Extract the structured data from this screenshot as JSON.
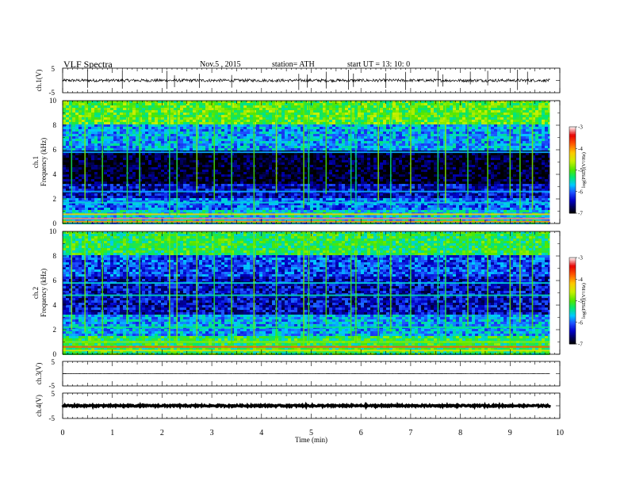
{
  "header": {
    "title": "VLF  Spectra",
    "date": "Nov.5  , 2015",
    "station": "station= ATH",
    "start": "start  UT  =   13: 10: 0"
  },
  "chart_data": [
    {
      "type": "line",
      "panel": "ch1-waveform",
      "ylabel": "ch.1(V)",
      "ylim": [
        -5,
        5
      ],
      "ytick_labels": [
        "5",
        "-5"
      ],
      "xlim": [
        0,
        10
      ],
      "x_data_extent": [
        0,
        9.8
      ],
      "baseline": 0,
      "noise_amplitude": 0.6,
      "spikes_x": [
        0.5,
        1.2,
        2.1,
        2.25,
        2.75,
        3.4,
        4.75,
        4.92,
        5.3,
        5.75,
        5.85,
        6.5,
        6.9,
        7.55,
        7.65,
        8.2,
        8.55,
        9.15,
        9.35
      ],
      "color": "#000000"
    },
    {
      "type": "heatmap",
      "panel": "ch1-spectrogram",
      "ylabel": "ch.1\nFrequency  (kHz)",
      "xlim": [
        0,
        10
      ],
      "x_data_extent": [
        0,
        9.8
      ],
      "ylim": [
        0,
        10
      ],
      "yticks": [
        0,
        2,
        4,
        6,
        8,
        10
      ],
      "colorbar": {
        "label": "log(PSD)(V²/Hz)",
        "ticks": [
          -3,
          -4,
          -5,
          -6,
          -7
        ],
        "range": [
          -7,
          -3
        ]
      },
      "bands": [
        {
          "f_range": [
            10,
            8
          ],
          "log_psd": -5.0
        },
        {
          "f_range": [
            8,
            6
          ],
          "log_psd": -5.8
        },
        {
          "f_range": [
            6,
            3.2
          ],
          "log_psd": -6.9
        },
        {
          "f_range": [
            3.2,
            2
          ],
          "log_psd": -6.4
        },
        {
          "f_range": [
            2,
            1
          ],
          "log_psd": -6.0
        },
        {
          "f_range": [
            1,
            0
          ],
          "log_psd": -5.6
        }
      ],
      "lines": [
        {
          "f": 5.8,
          "log_psd": -5.8
        },
        {
          "f": 2.6,
          "log_psd": -5.8
        },
        {
          "f": 1.7,
          "log_psd": -5.6
        },
        {
          "f": 0.75,
          "log_psd": -4.3
        },
        {
          "f": 0.4,
          "log_psd": -3.2
        },
        {
          "f": 0.15,
          "log_psd": -4.0
        }
      ],
      "sferics_x": [
        0.18,
        0.45,
        0.8,
        1.3,
        1.55,
        2.15,
        2.3,
        2.7,
        3.05,
        3.4,
        3.85,
        4.3,
        4.85,
        4.95,
        5.3,
        5.8,
        5.9,
        6.35,
        6.6,
        7.0,
        7.55,
        7.7,
        8.15,
        8.55,
        9.0,
        9.2,
        9.45
      ]
    },
    {
      "type": "heatmap",
      "panel": "ch2-spectrogram",
      "ylabel": "ch.2\nFrequency  (kHz)",
      "xlim": [
        0,
        10
      ],
      "x_data_extent": [
        0,
        9.8
      ],
      "ylim": [
        0,
        10
      ],
      "yticks": [
        0,
        2,
        4,
        6,
        8,
        10
      ],
      "colorbar": {
        "label": "log(PSD)(V²/Hz)",
        "ticks": [
          -3,
          -4,
          -5,
          -6,
          -7
        ],
        "range": [
          -7,
          -3
        ]
      },
      "bands": [
        {
          "f_range": [
            10,
            8
          ],
          "log_psd": -5.2
        },
        {
          "f_range": [
            8,
            6.3
          ],
          "log_psd": -6.1
        },
        {
          "f_range": [
            6.3,
            3.2
          ],
          "log_psd": -6.4
        },
        {
          "f_range": [
            3.2,
            1.5
          ],
          "log_psd": -5.8
        },
        {
          "f_range": [
            1.5,
            0
          ],
          "log_psd": -5.2
        }
      ],
      "lines": [
        {
          "f": 5.8,
          "log_psd": -5.6
        },
        {
          "f": 4.8,
          "log_psd": -5.5
        },
        {
          "f": 2.2,
          "log_psd": -5.4
        },
        {
          "f": 1.0,
          "log_psd": -4.8
        },
        {
          "f": 0.6,
          "log_psd": -3.8
        },
        {
          "f": 0.3,
          "log_psd": -4.5
        }
      ],
      "sferics_x": [
        0.18,
        0.45,
        0.8,
        1.3,
        1.55,
        2.15,
        2.3,
        2.7,
        3.05,
        3.4,
        3.85,
        4.3,
        4.85,
        4.95,
        5.3,
        5.8,
        5.9,
        6.35,
        6.6,
        7.0,
        7.55,
        7.7,
        8.15,
        8.55,
        9.0,
        9.2,
        9.45
      ]
    },
    {
      "type": "line",
      "panel": "ch3-waveform",
      "ylabel": "ch.3(V)",
      "ylim": [
        -5,
        5
      ],
      "ytick_labels": [
        "5",
        "-5"
      ],
      "xlim": [
        0,
        10
      ],
      "x_data_extent": [
        0,
        9.8
      ],
      "baseline": 0,
      "noise_amplitude": 0.05,
      "spikes_x": [],
      "color": "#000000"
    },
    {
      "type": "line",
      "panel": "ch4-waveform",
      "ylabel": "ch.4(V)",
      "ylim": [
        -5,
        5
      ],
      "ytick_labels": [
        "5",
        "-5"
      ],
      "xlim": [
        0,
        10
      ],
      "x_data_extent": [
        0,
        9.8
      ],
      "baseline": 0,
      "noise_amplitude": 0.3,
      "spikes_x": [],
      "color": "#000000"
    }
  ],
  "x_axis": {
    "label": "Time  (min)",
    "tick_labels": [
      "0",
      "1",
      "2",
      "3",
      "4",
      "5",
      "6",
      "7",
      "8",
      "9",
      "10"
    ]
  }
}
